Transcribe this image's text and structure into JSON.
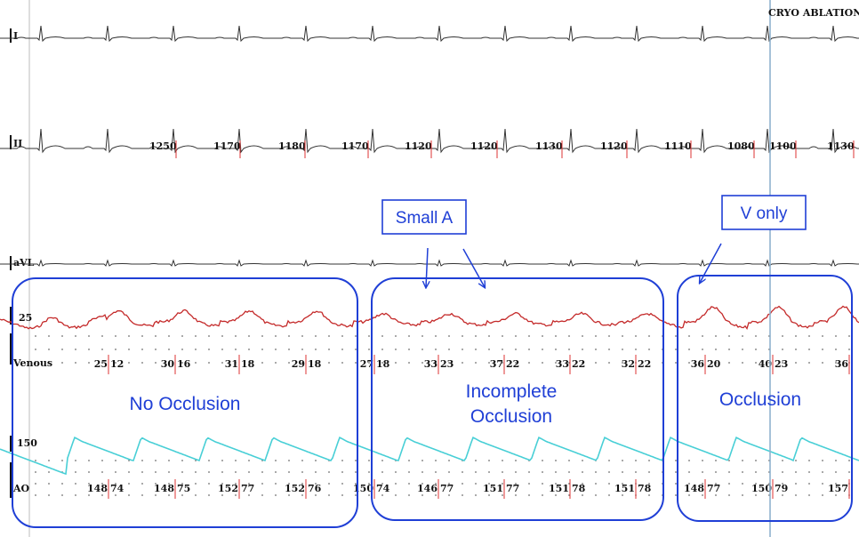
{
  "header": {
    "marker_label": "CRYO ABLATION"
  },
  "leads": {
    "lead_i": "I",
    "lead_ii": "II",
    "lead_avl": "aVL",
    "venous": "Venous",
    "venous_scale": "25",
    "ao": "AO",
    "ao_scale": "150"
  },
  "rr_intervals": [
    "1250",
    "1170",
    "1180",
    "1170",
    "1120",
    "1120",
    "1130",
    "1120",
    "1110",
    "1080",
    "1100",
    "1130"
  ],
  "venous_values": [
    [
      "25",
      "12"
    ],
    [
      "30",
      "16"
    ],
    [
      "31",
      "18"
    ],
    [
      "29",
      "18"
    ],
    [
      "27",
      "18"
    ],
    [
      "33",
      "23"
    ],
    [
      "37",
      "22"
    ],
    [
      "33",
      "22"
    ],
    [
      "32",
      "22"
    ],
    [
      "36",
      "20"
    ],
    [
      "40",
      "23"
    ],
    [
      "36",
      ""
    ]
  ],
  "ao_values": [
    [
      "148",
      "74"
    ],
    [
      "148",
      "75"
    ],
    [
      "152",
      "77"
    ],
    [
      "152",
      "76"
    ],
    [
      "150",
      "74"
    ],
    [
      "146",
      "77"
    ],
    [
      "151",
      "77"
    ],
    [
      "151",
      "78"
    ],
    [
      "151",
      "78"
    ],
    [
      "148",
      "77"
    ],
    [
      "150",
      "79"
    ],
    [
      "157",
      ""
    ]
  ],
  "callouts": {
    "small_a": "Small A",
    "v_only": "V only"
  },
  "regions": {
    "no_occlusion": "No Occlusion",
    "incomplete_line1": "Incomplete",
    "incomplete_line2": "Occlusion",
    "occlusion": "Occlusion"
  },
  "colors": {
    "annotation_blue": "#1f3fd6",
    "venous_trace": "#c42a2a",
    "aortic_trace": "#48cfd6",
    "ecg_trace": "#333333",
    "marker_line": "#8fb2cf"
  }
}
